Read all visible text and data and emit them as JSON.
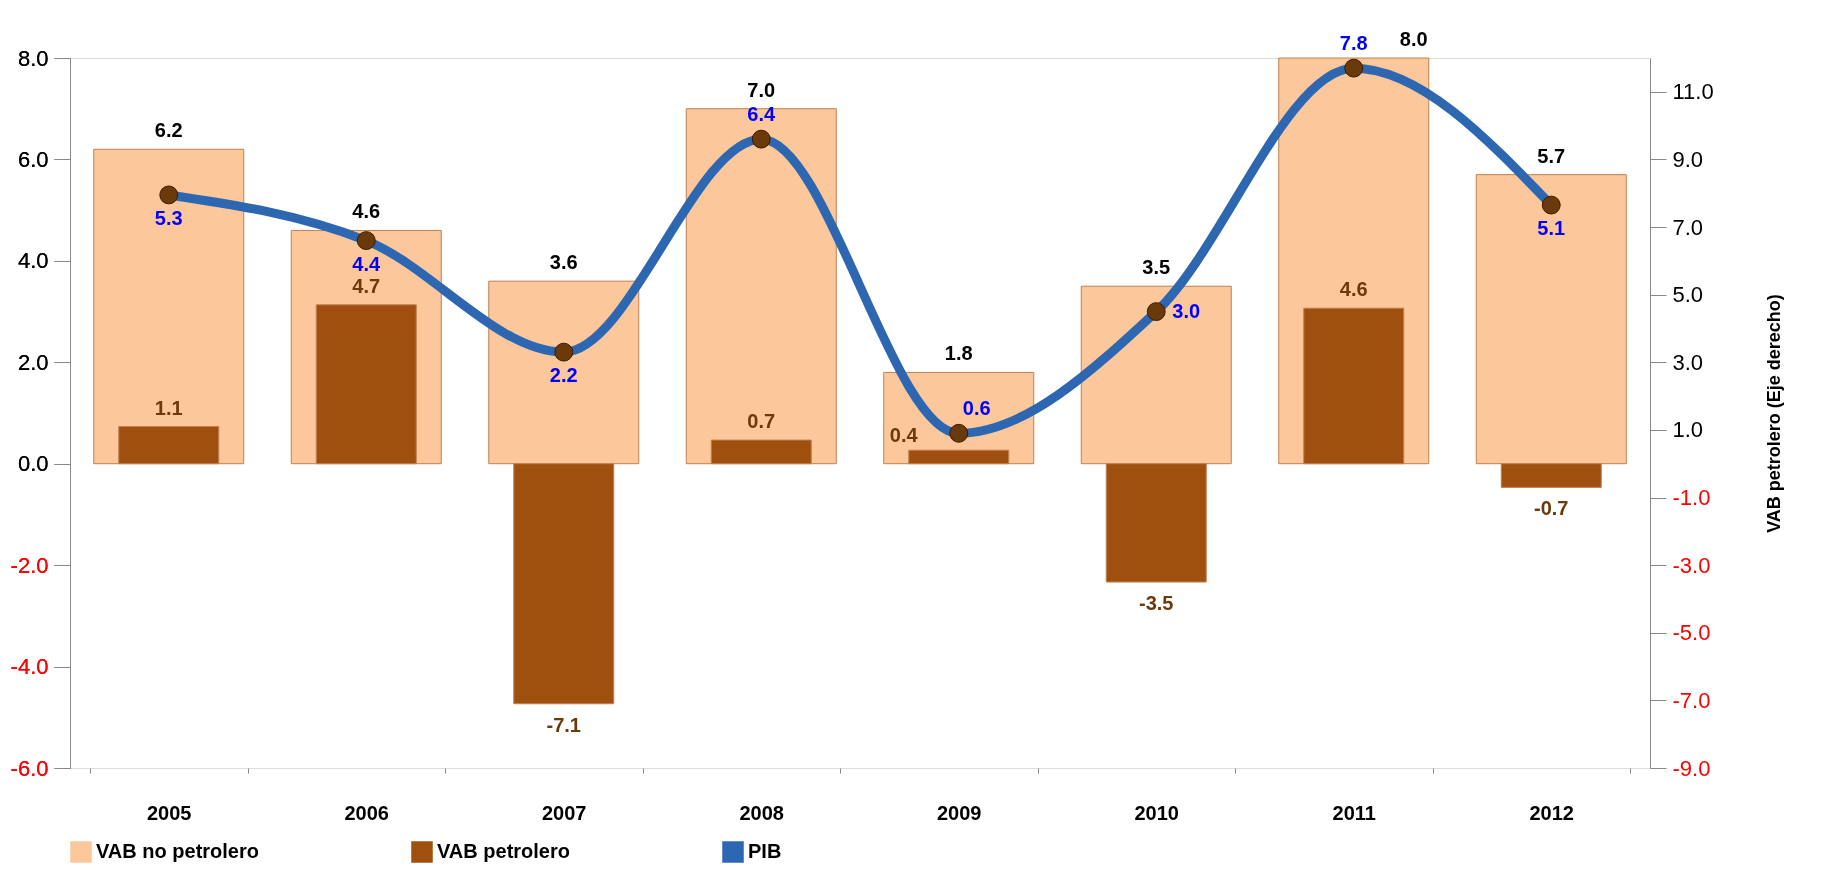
{
  "chart_data": {
    "type": "bar",
    "categories": [
      "2005",
      "2006",
      "2007",
      "2008",
      "2009",
      "2010",
      "2011",
      "2012"
    ],
    "series": [
      {
        "name": "VAB no petrolero",
        "color": "#fcc89b",
        "values": [
          6.2,
          4.6,
          3.6,
          7.0,
          1.8,
          3.5,
          8.0,
          5.7
        ],
        "value_labels": [
          "6.2",
          "4.6",
          "3.6",
          "7.0",
          "1.8",
          "3.5",
          "8.0",
          "5.7"
        ]
      },
      {
        "name": "VAB petrolero",
        "axis": "y2",
        "color": "#a0500e",
        "values": [
          1.1,
          4.7,
          -7.1,
          0.7,
          0.4,
          -3.5,
          4.6,
          -0.7
        ],
        "value_labels": [
          "1.1",
          "4.7",
          "-7.1",
          "0.7",
          "0.4",
          "-3.5",
          "4.6",
          "-0.7"
        ]
      },
      {
        "name": "PIB",
        "type": "line",
        "color": "#2e67b1",
        "marker": "circle",
        "values": [
          5.3,
          4.4,
          2.2,
          6.4,
          0.6,
          3.0,
          7.8,
          5.1
        ],
        "value_labels": [
          "5.3",
          "4.4",
          "2.2",
          "6.4",
          "0.6",
          "3.0",
          "7.8",
          "5.1"
        ]
      }
    ],
    "ylim": [
      -6,
      8
    ],
    "yticks": [
      {
        "value": -6,
        "label": "-6.0"
      },
      {
        "value": -4,
        "label": "-4.0"
      },
      {
        "value": -2,
        "label": "-2.0"
      },
      {
        "value": 0,
        "label": "0.0"
      },
      {
        "value": 2,
        "label": "2.0"
      },
      {
        "value": 4,
        "label": "4.0"
      },
      {
        "value": 6,
        "label": "6.0"
      },
      {
        "value": 8,
        "label": "8.0"
      }
    ],
    "y2lim": [
      -9,
      12
    ],
    "y2ticks": [
      {
        "value": -9,
        "label": "-9.0"
      },
      {
        "value": -7,
        "label": "-7.0"
      },
      {
        "value": -5,
        "label": "-5.0"
      },
      {
        "value": -3,
        "label": "-3.0"
      },
      {
        "value": -1,
        "label": "-1.0"
      },
      {
        "value": 1,
        "label": "1.0"
      },
      {
        "value": 3,
        "label": "3.0"
      },
      {
        "value": 5,
        "label": "5.0"
      },
      {
        "value": 7,
        "label": "7.0"
      },
      {
        "value": 9,
        "label": "9.0"
      },
      {
        "value": 11,
        "label": "11.0"
      }
    ],
    "y2label": "VAB petrolero (Eje derecho)",
    "legend": "bottom",
    "grid": false
  }
}
